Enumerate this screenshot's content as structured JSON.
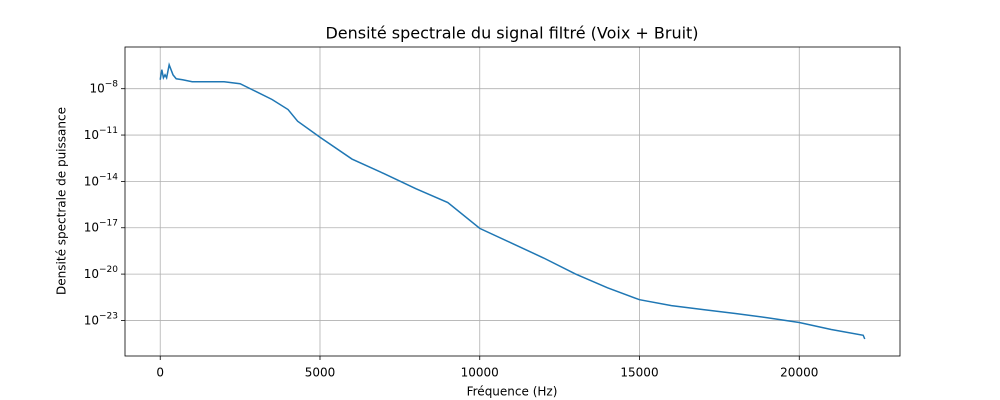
{
  "chart_data": {
    "type": "line",
    "title": "Densité spectrale du signal filtré (Voix + Bruit)",
    "x_label": "Fréquence (Hz)",
    "y_label": "Densité spectrale de puissance",
    "y_log": true,
    "grid": true,
    "xlim": [
      -1102.5,
      23152.5
    ],
    "ylim": [
      5e-26,
      5e-06
    ],
    "xticks": [
      0,
      5000,
      10000,
      15000,
      20000
    ],
    "yticks": [
      {
        "value": 1e-08,
        "label": "10−8"
      },
      {
        "value": 1e-11,
        "label": "10−11"
      },
      {
        "value": 1e-14,
        "label": "10−14"
      },
      {
        "value": 1e-17,
        "label": "10−17"
      },
      {
        "value": 1e-20,
        "label": "10−20"
      },
      {
        "value": 1e-23,
        "label": "10−23"
      }
    ],
    "x": [
      0,
      50,
      100,
      150,
      200,
      280,
      400,
      500,
      700,
      1000,
      2000,
      2500,
      3000,
      3500,
      4000,
      4300,
      5000,
      6000,
      7000,
      8000,
      9000,
      10000,
      11000,
      12000,
      13000,
      14000,
      15000,
      16000,
      17000,
      18000,
      19000,
      20000,
      21000,
      22000,
      22050
    ],
    "series": [
      {
        "color": "#1f77b4",
        "values": [
          3.8e-08,
          1.7e-07,
          5.1e-08,
          7.9e-08,
          5.1e-08,
          3.5e-07,
          7.9e-08,
          4.4e-08,
          3.8e-08,
          2.8e-08,
          2.8e-08,
          2.1e-08,
          6.5e-09,
          2e-09,
          4.5e-10,
          7.9e-11,
          7.2e-12,
          2.8e-13,
          3.2e-14,
          3.4e-15,
          4.3e-16,
          9.1e-18,
          1e-18,
          1.1e-19,
          1e-20,
          1.3e-21,
          2.2e-22,
          9.1e-23,
          5e-23,
          2.8e-23,
          1.5e-23,
          7.4e-24,
          2.6e-24,
          1.1e-24,
          6.3e-25
        ]
      }
    ]
  }
}
